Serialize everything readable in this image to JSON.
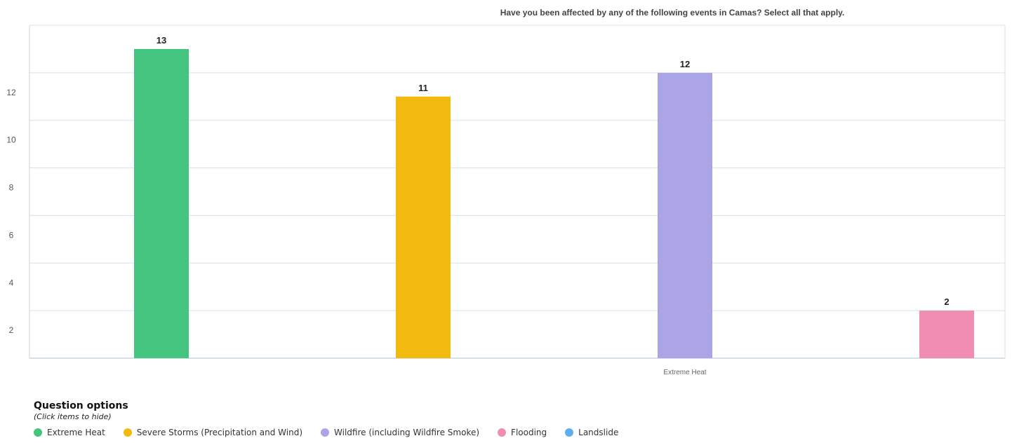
{
  "chart_data": {
    "type": "bar",
    "title": "Have you been affected by any of the following events in Camas? Select all that apply.",
    "categories": [
      "Extreme Heat"
    ],
    "x_tick_labels": [
      "Extreme Heat"
    ],
    "series": [
      {
        "name": "Extreme Heat",
        "values": [
          13
        ],
        "color": "#43c47f"
      },
      {
        "name": "Severe Storms (Precipitation and Wind)",
        "values": [
          11
        ],
        "color": "#f2b90f"
      },
      {
        "name": "Wildfire (including Wildfire Smoke)",
        "values": [
          12
        ],
        "color": "#aba4e6"
      },
      {
        "name": "Flooding",
        "values": [
          2
        ],
        "color": "#f08db0"
      },
      {
        "name": "Landslide",
        "values": [
          0
        ],
        "color": "#5eaef0"
      }
    ],
    "data_labels": [
      "13",
      "11",
      "12",
      "2"
    ],
    "y_tick_labels": [
      "2",
      "4",
      "6",
      "8",
      "10",
      "12"
    ],
    "ylim": [
      0,
      14
    ],
    "grid": true,
    "legend_placement": "bottom-left"
  },
  "legend": {
    "title": "Question options",
    "hint": "(Click items to hide)",
    "items": [
      {
        "label": "Extreme Heat",
        "color": "#43c47f"
      },
      {
        "label": "Severe Storms (Precipitation and Wind)",
        "color": "#f2b90f"
      },
      {
        "label": "Wildfire (including Wildfire Smoke)",
        "color": "#aba4e6"
      },
      {
        "label": "Flooding",
        "color": "#f08db0"
      },
      {
        "label": "Landslide",
        "color": "#5eaef0"
      }
    ]
  },
  "colors": {
    "grid": "#d9e1ea",
    "axis": "#c8d3df"
  }
}
